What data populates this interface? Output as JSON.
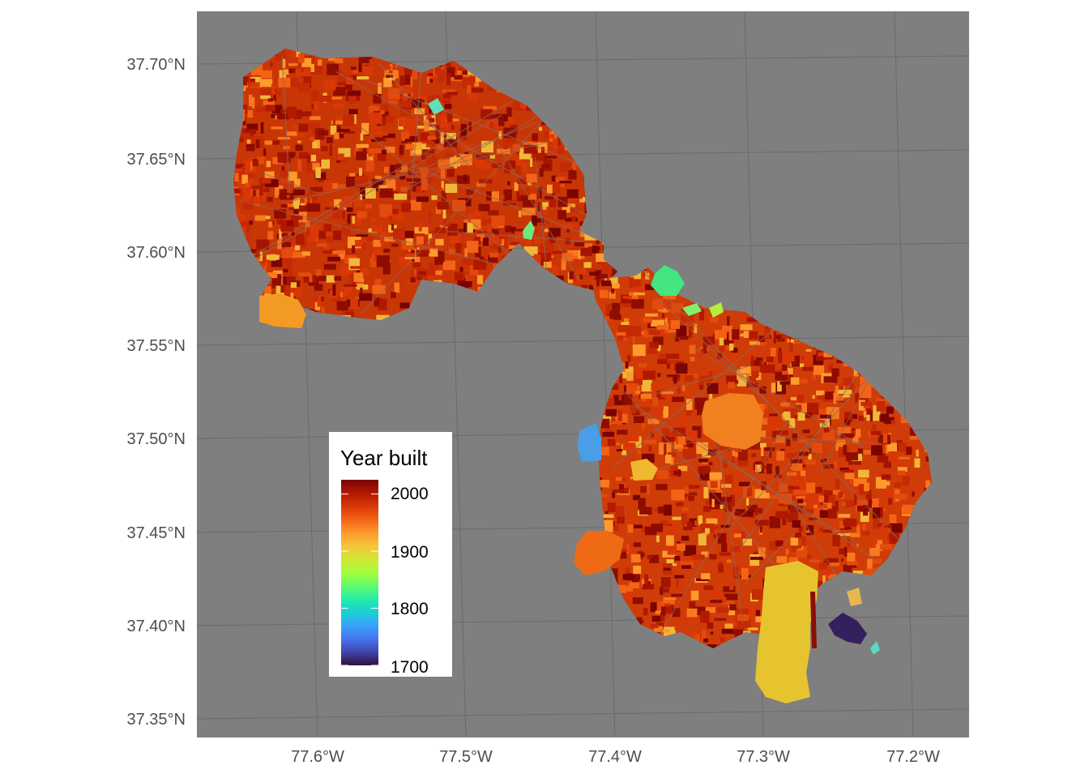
{
  "map": {
    "background_color": "#7f7f7f",
    "gridline_color": "#6b6b6b",
    "y_ticks": [
      {
        "lat": 37.7,
        "label": "37.70°N"
      },
      {
        "lat": 37.65,
        "label": "37.65°N"
      },
      {
        "lat": 37.6,
        "label": "37.60°N"
      },
      {
        "lat": 37.55,
        "label": "37.55°N"
      },
      {
        "lat": 37.5,
        "label": "37.50°N"
      },
      {
        "lat": 37.45,
        "label": "37.45°N"
      },
      {
        "lat": 37.4,
        "label": "37.40°N"
      },
      {
        "lat": 37.35,
        "label": "37.35°N"
      }
    ],
    "x_ticks": [
      {
        "lon": -77.6,
        "label": "77.6°W"
      },
      {
        "lon": -77.5,
        "label": "77.5°W"
      },
      {
        "lon": -77.4,
        "label": "77.4°W"
      },
      {
        "lon": -77.3,
        "label": "77.3°W"
      },
      {
        "lon": -77.2,
        "label": "77.2°W"
      }
    ]
  },
  "legend": {
    "title": "Year built",
    "scale_min": 1700,
    "scale_max": 2025,
    "labels": [
      {
        "value": 2000,
        "text": "2000"
      },
      {
        "value": 1900,
        "text": "1900"
      },
      {
        "value": 1800,
        "text": "1800"
      },
      {
        "value": 1700,
        "text": "1700"
      }
    ],
    "colormap": [
      "#30123b",
      "#4145ab",
      "#4675ed",
      "#39a2fc",
      "#1bcfd4",
      "#24eca6",
      "#61fc6c",
      "#a4fc3b",
      "#d1e834",
      "#f3c63a",
      "#fe9b2d",
      "#f36315",
      "#d93806",
      "#b11901",
      "#7a0402"
    ]
  }
}
